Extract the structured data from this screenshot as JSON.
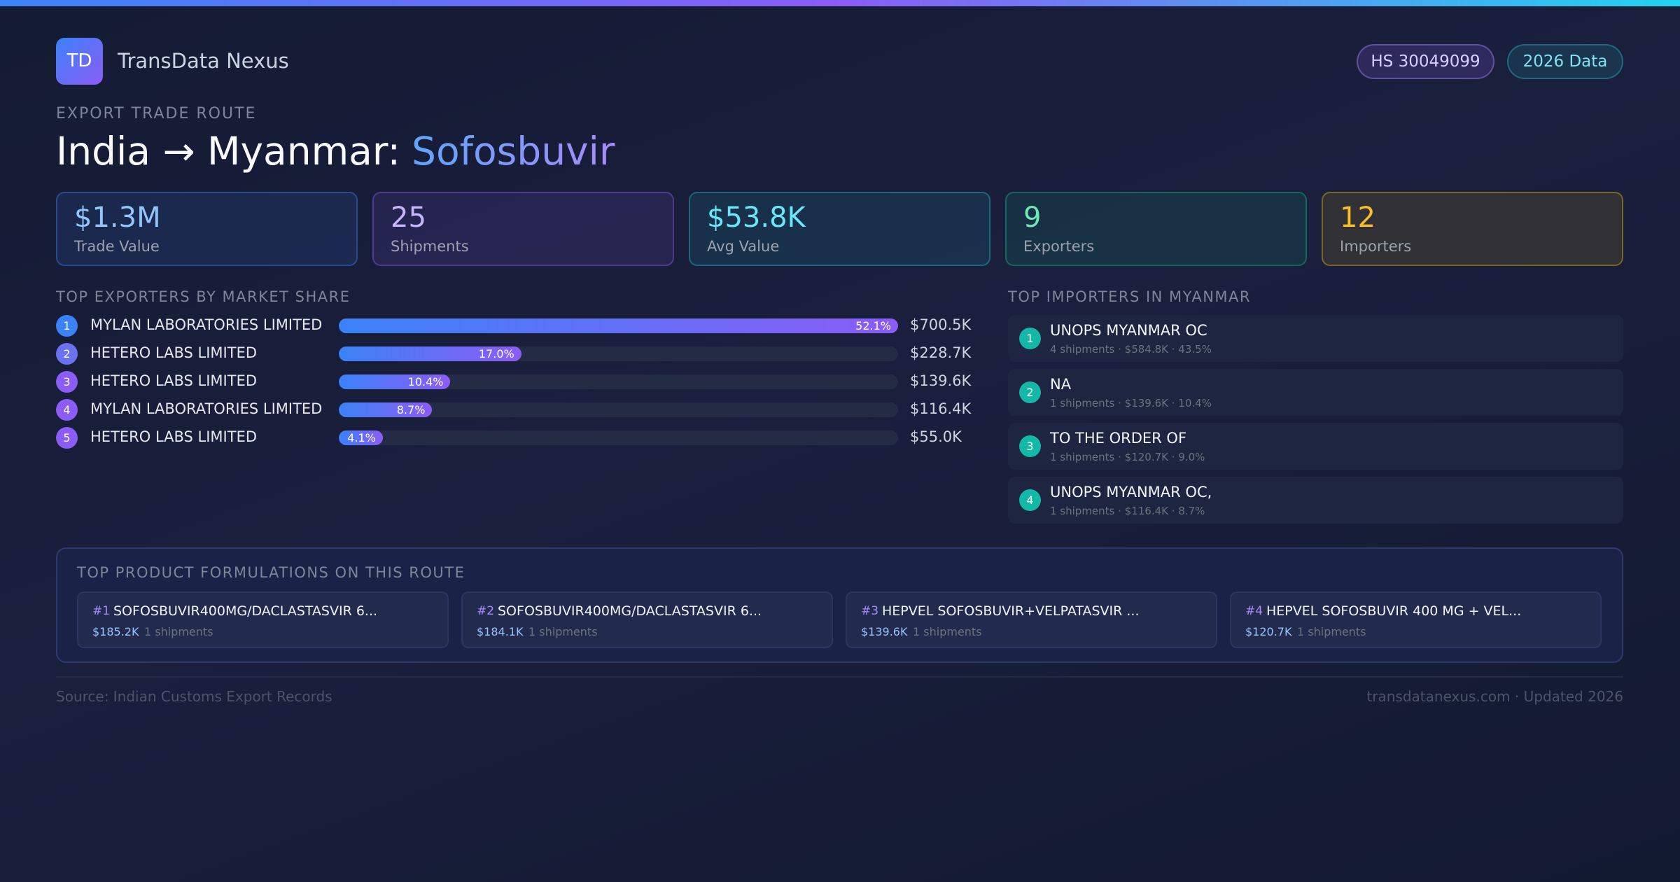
{
  "header": {
    "logo": "TD",
    "brand": "TransData Nexus",
    "badges": [
      "HS 30049099",
      "2026 Data"
    ]
  },
  "route": {
    "eyebrow": "EXPORT TRADE ROUTE",
    "title_prefix": "India → Myanmar:",
    "title_highlight": "Sofosbuvir"
  },
  "stats": [
    {
      "value": "$1.3M",
      "label": "Trade Value"
    },
    {
      "value": "25",
      "label": "Shipments"
    },
    {
      "value": "$53.8K",
      "label": "Avg Value"
    },
    {
      "value": "9",
      "label": "Exporters"
    },
    {
      "value": "12",
      "label": "Importers"
    }
  ],
  "exporters": {
    "title": "TOP EXPORTERS BY MARKET SHARE",
    "rows": [
      {
        "rank": 1,
        "name": "MYLAN LABORATORIES LIMITED",
        "share": 52.1,
        "share_label": "52.1%",
        "value": "$700.5K"
      },
      {
        "rank": 2,
        "name": "HETERO LABS LIMITED",
        "share": 17.0,
        "share_label": "17.0%",
        "value": "$228.7K"
      },
      {
        "rank": 3,
        "name": "HETERO LABS LIMITED",
        "share": 10.4,
        "share_label": "10.4%",
        "value": "$139.6K"
      },
      {
        "rank": 4,
        "name": "MYLAN LABORATORIES LIMITED",
        "share": 8.7,
        "share_label": "8.7%",
        "value": "$116.4K"
      },
      {
        "rank": 5,
        "name": "HETERO LABS LIMITED",
        "share": 4.1,
        "share_label": "4.1%",
        "value": "$55.0K"
      }
    ]
  },
  "importers": {
    "title": "TOP IMPORTERS IN MYANMAR",
    "rows": [
      {
        "rank": 1,
        "name": "UNOPS MYANMAR OC",
        "detail": "4 shipments · $584.8K · 43.5%"
      },
      {
        "rank": 2,
        "name": "NA",
        "detail": "1 shipments · $139.6K · 10.4%"
      },
      {
        "rank": 3,
        "name": "TO THE ORDER OF",
        "detail": "1 shipments · $120.7K · 9.0%"
      },
      {
        "rank": 4,
        "name": "UNOPS MYANMAR OC,",
        "detail": "1 shipments · $116.4K · 8.7%"
      }
    ]
  },
  "products": {
    "title": "TOP PRODUCT FORMULATIONS ON THIS ROUTE",
    "items": [
      {
        "rank": "#1",
        "name": "SOFOSBUVIR400MG/DACLASTASVIR 6...",
        "value": "$185.2K",
        "shipments": "1 shipments"
      },
      {
        "rank": "#2",
        "name": "SOFOSBUVIR400MG/DACLASTASVIR 6...",
        "value": "$184.1K",
        "shipments": "1 shipments"
      },
      {
        "rank": "#3",
        "name": "HEPVEL SOFOSBUVIR+VELPATASVIR ...",
        "value": "$139.6K",
        "shipments": "1 shipments"
      },
      {
        "rank": "#4",
        "name": "HEPVEL SOFOSBUVIR 400 MG + VEL...",
        "value": "$120.7K",
        "shipments": "1 shipments"
      }
    ]
  },
  "footer": {
    "source": "Source: Indian Customs Export Records",
    "site": "transdatanexus.com · Updated 2026"
  }
}
